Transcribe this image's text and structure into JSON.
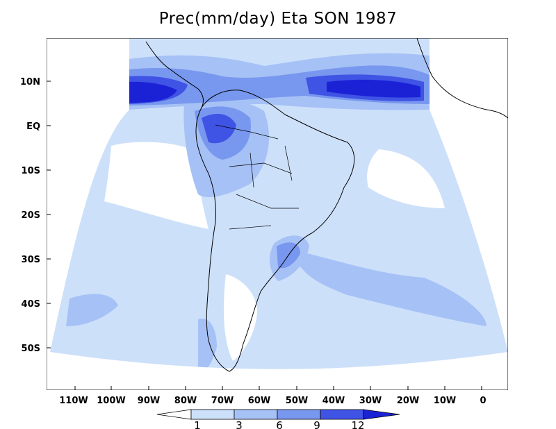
{
  "title": "Prec(mm/day) Eta SON 1987",
  "lon_ticks": [
    "110W",
    "100W",
    "90W",
    "80W",
    "70W",
    "60W",
    "50W",
    "40W",
    "30W",
    "20W",
    "10W",
    "0"
  ],
  "lat_ticks": [
    "10N",
    "EQ",
    "10S",
    "20S",
    "30S",
    "40S",
    "50S"
  ],
  "colorbar": {
    "labels": [
      "1",
      "3",
      "6",
      "9",
      "12"
    ],
    "colors": [
      "#ffffff",
      "#cde0fa",
      "#a6c1f5",
      "#7897ee",
      "#3f53e4",
      "#1b22d6"
    ]
  },
  "colors": {
    "land": "#ffffff",
    "coast": "#000000"
  }
}
